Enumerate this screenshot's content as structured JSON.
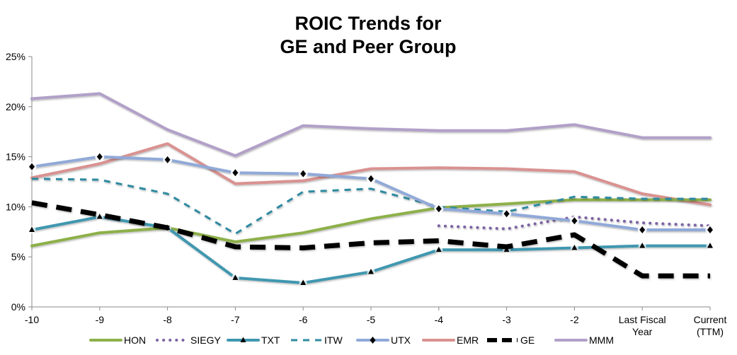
{
  "chart_data": {
    "type": "line",
    "title": [
      "ROIC Trends for",
      "GE and Peer Group"
    ],
    "categories": [
      "-10",
      "-9",
      "-8",
      "-7",
      "-6",
      "-5",
      "-4",
      "-3",
      "-2",
      "Last Fiscal Year",
      "Current (TTM)"
    ],
    "category_label_lines": [
      [
        "-10"
      ],
      [
        "-9"
      ],
      [
        "-8"
      ],
      [
        "-7"
      ],
      [
        "-6"
      ],
      [
        "-5"
      ],
      [
        "-4"
      ],
      [
        "-3"
      ],
      [
        "-2"
      ],
      [
        "Last Fiscal",
        "Year"
      ],
      [
        "Current",
        "(TTM)"
      ]
    ],
    "ylim": [
      0,
      25
    ],
    "yticks": [
      "0%",
      "5%",
      "10%",
      "15%",
      "20%",
      "25%"
    ],
    "grid": false,
    "legend_position": "bottom",
    "series": [
      {
        "name": "HON",
        "color": "#8db04a",
        "style": "solid",
        "marker": "none",
        "values": [
          6.1,
          7.4,
          7.9,
          6.5,
          7.4,
          8.8,
          9.9,
          10.3,
          10.7,
          10.7,
          10.7
        ]
      },
      {
        "name": "SIEGY",
        "color": "#7b62a3",
        "style": "dotted",
        "marker": "none",
        "values": [
          null,
          null,
          null,
          null,
          null,
          null,
          8.1,
          7.8,
          9.0,
          8.4,
          8.1
        ]
      },
      {
        "name": "TXT",
        "color": "#3f97b0",
        "style": "solid",
        "marker": "triangle",
        "values": [
          7.7,
          9.0,
          7.9,
          2.9,
          2.4,
          3.5,
          5.7,
          5.7,
          5.9,
          6.1,
          6.1
        ]
      },
      {
        "name": "ITW",
        "color": "#2f8aa0",
        "style": "dashed",
        "marker": "none",
        "values": [
          12.8,
          12.7,
          11.3,
          7.3,
          11.5,
          11.8,
          10.0,
          9.5,
          11.0,
          10.8,
          10.8
        ]
      },
      {
        "name": "UTX",
        "color": "#90a9d8",
        "style": "solid",
        "marker": "diamond",
        "values": [
          14.0,
          15.0,
          14.7,
          13.4,
          13.3,
          12.8,
          9.8,
          9.3,
          8.6,
          7.7,
          7.7
        ]
      },
      {
        "name": "EMR",
        "color": "#d99290",
        "style": "solid",
        "marker": "none",
        "values": [
          12.9,
          14.3,
          16.3,
          12.3,
          12.6,
          13.8,
          13.9,
          13.8,
          13.5,
          11.3,
          10.2
        ]
      },
      {
        "name": "GE",
        "color": "#000000",
        "style": "heavy-dashed",
        "marker": "none",
        "values": [
          10.4,
          9.2,
          7.9,
          6.0,
          5.9,
          6.4,
          6.6,
          6.0,
          7.2,
          3.1,
          3.1
        ]
      },
      {
        "name": "MMM",
        "color": "#b1a0c8",
        "style": "solid",
        "marker": "none",
        "values": [
          20.8,
          21.3,
          17.7,
          15.1,
          18.1,
          17.8,
          17.6,
          17.6,
          18.2,
          16.9,
          16.9
        ]
      }
    ]
  }
}
